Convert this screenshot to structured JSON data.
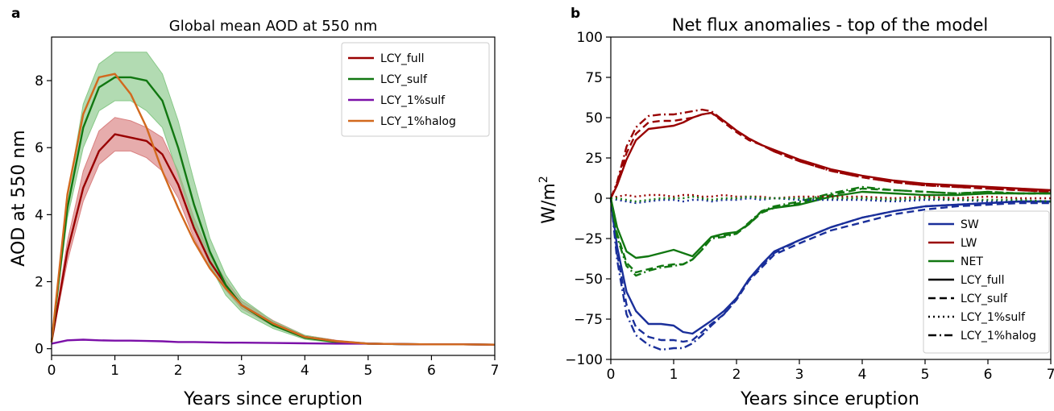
{
  "colors": {
    "full": "#990000",
    "sulf": "#117711",
    "onepct_sulf": "#7b10a8",
    "onepct_halog": "#d2691e",
    "full_band": "#d98080",
    "sulf_band": "#88c888",
    "SW": "#1a2f9a",
    "LW": "#990000",
    "NET": "#117711"
  },
  "chart_data": [
    {
      "type": "line",
      "panel": "a",
      "title": "Global mean AOD at 550 nm",
      "xlabel": "Years since eruption",
      "ylabel": "AOD at 550 nm",
      "xlim": [
        0,
        7
      ],
      "ylim": [
        -0.2,
        9.3
      ],
      "xticks": [
        0,
        1,
        2,
        3,
        4,
        5,
        6,
        7
      ],
      "yticks": [
        0,
        2,
        4,
        6,
        8
      ],
      "grid": false,
      "legend_position": "top-right",
      "x": [
        0,
        0.25,
        0.5,
        0.75,
        1.0,
        1.25,
        1.5,
        1.75,
        2.0,
        2.25,
        2.5,
        2.75,
        3.0,
        3.5,
        4.0,
        4.5,
        5.0,
        5.5,
        6.0,
        6.5,
        7.0
      ],
      "series": [
        {
          "name": "LCY_full",
          "key": "full",
          "values": [
            0.2,
            2.9,
            4.8,
            5.9,
            6.4,
            6.3,
            6.2,
            5.8,
            4.9,
            3.6,
            2.6,
            1.9,
            1.3,
            0.75,
            0.35,
            0.22,
            0.15,
            0.14,
            0.13,
            0.13,
            0.12
          ]
        },
        {
          "name": "LCY_sulf",
          "key": "sulf",
          "values": [
            0.2,
            4.2,
            6.6,
            7.8,
            8.1,
            8.1,
            8.0,
            7.4,
            6.0,
            4.3,
            2.9,
            1.9,
            1.3,
            0.7,
            0.33,
            0.2,
            0.15,
            0.14,
            0.13,
            0.13,
            0.12
          ]
        },
        {
          "name": "LCY_1%sulf",
          "key": "onepct_sulf",
          "values": [
            0.15,
            0.25,
            0.27,
            0.25,
            0.24,
            0.24,
            0.23,
            0.22,
            0.2,
            0.2,
            0.19,
            0.18,
            0.18,
            0.17,
            0.16,
            0.15,
            0.15,
            0.14,
            0.13,
            0.13,
            0.12
          ]
        },
        {
          "name": "LCY_1%halog",
          "key": "onepct_halog",
          "values": [
            0.2,
            4.6,
            7.0,
            8.1,
            8.2,
            7.6,
            6.6,
            5.3,
            4.2,
            3.2,
            2.4,
            1.8,
            1.3,
            0.75,
            0.35,
            0.22,
            0.15,
            0.14,
            0.13,
            0.13,
            0.12
          ]
        }
      ],
      "bands": [
        {
          "key": "full",
          "lower": [
            0.2,
            2.6,
            4.4,
            5.5,
            5.9,
            5.9,
            5.7,
            5.3,
            4.5,
            3.3,
            2.4,
            1.75,
            1.2,
            0.68,
            0.3,
            0.19,
            0.13,
            0.13,
            0.12,
            0.12,
            0.11
          ],
          "upper": [
            0.2,
            3.2,
            5.3,
            6.5,
            6.9,
            6.8,
            6.6,
            6.3,
            5.3,
            3.9,
            2.8,
            2.05,
            1.42,
            0.84,
            0.4,
            0.25,
            0.17,
            0.15,
            0.14,
            0.14,
            0.13
          ]
        },
        {
          "key": "sulf",
          "lower": [
            0.2,
            3.9,
            6.0,
            7.1,
            7.4,
            7.4,
            7.1,
            6.6,
            5.2,
            3.7,
            2.5,
            1.6,
            1.1,
            0.6,
            0.28,
            0.17,
            0.13,
            0.12,
            0.12,
            0.12,
            0.11
          ],
          "upper": [
            0.2,
            4.5,
            7.3,
            8.5,
            8.85,
            8.85,
            8.85,
            8.2,
            6.8,
            5.0,
            3.3,
            2.2,
            1.5,
            0.82,
            0.4,
            0.24,
            0.17,
            0.15,
            0.14,
            0.14,
            0.13
          ]
        }
      ]
    },
    {
      "type": "line",
      "panel": "b",
      "title": "Net flux anomalies - top of the model",
      "xlabel": "Years since eruption",
      "ylabel": "W/m",
      "ylabel_sup": "2",
      "xlim": [
        0,
        7
      ],
      "ylim": [
        -100,
        100
      ],
      "xticks": [
        0,
        1,
        2,
        3,
        4,
        5,
        6,
        7
      ],
      "yticks": [
        -100,
        -75,
        -50,
        -25,
        0,
        25,
        50,
        75,
        100
      ],
      "grid": false,
      "legend_position": "lower-right",
      "legend": {
        "colors": [
          {
            "name": "SW",
            "key": "SW"
          },
          {
            "name": "LW",
            "key": "LW"
          },
          {
            "name": "NET",
            "key": "NET"
          }
        ],
        "styles": [
          {
            "name": "LCY_full",
            "dash": "solid"
          },
          {
            "name": "LCY_sulf",
            "dash": "dashed"
          },
          {
            "name": "LCY_1%sulf",
            "dash": "dotted"
          },
          {
            "name": "LCY_1%halog",
            "dash": "dashdot"
          }
        ]
      },
      "x": [
        0,
        0.1,
        0.25,
        0.4,
        0.6,
        0.8,
        1.0,
        1.15,
        1.3,
        1.45,
        1.6,
        1.8,
        2.0,
        2.2,
        2.4,
        2.6,
        3.0,
        3.5,
        4.0,
        4.5,
        5.0,
        5.5,
        6.0,
        6.5,
        7.0
      ],
      "series": [
        {
          "name": "SW",
          "key": "SW",
          "dash": "solid",
          "values": [
            0,
            -30,
            -58,
            -70,
            -78,
            -78,
            -79,
            -83,
            -84,
            -80,
            -76,
            -70,
            -62,
            -50,
            -41,
            -33,
            -26,
            -18,
            -12,
            -8,
            -5,
            -4,
            -3,
            -2,
            -2
          ]
        },
        {
          "name": "SW",
          "key": "SW",
          "dash": "dashed",
          "values": [
            0,
            -34,
            -66,
            -80,
            -86,
            -88,
            -88,
            -89,
            -88,
            -83,
            -78,
            -72,
            -63,
            -51,
            -43,
            -35,
            -28,
            -20,
            -15,
            -10,
            -7,
            -5,
            -4,
            -3,
            -3
          ]
        },
        {
          "name": "SW",
          "key": "SW",
          "dash": "dashdot",
          "values": [
            0,
            -38,
            -72,
            -85,
            -91,
            -94,
            -93,
            -93,
            -90,
            -85,
            -79,
            -72,
            -62,
            -50,
            -42,
            -34,
            -26,
            -18,
            -12,
            -8,
            -5,
            -4,
            -3,
            -2,
            -2
          ]
        },
        {
          "name": "LW",
          "key": "LW",
          "dash": "solid",
          "values": [
            0,
            8,
            24,
            36,
            43,
            44,
            45,
            47,
            50,
            52,
            53,
            48,
            42,
            37,
            33,
            30,
            24,
            18,
            14,
            11,
            9,
            8,
            7,
            6,
            5
          ]
        },
        {
          "name": "LW",
          "key": "LW",
          "dash": "dashed",
          "values": [
            0,
            9,
            28,
            40,
            47,
            48,
            48,
            49,
            50,
            52,
            53,
            47,
            41,
            36,
            33,
            29,
            23,
            17,
            13,
            10,
            8,
            7,
            6,
            5,
            4
          ]
        },
        {
          "name": "LW",
          "key": "LW",
          "dash": "dashdot",
          "values": [
            0,
            10,
            32,
            44,
            51,
            52,
            52,
            53,
            54,
            55,
            54,
            48,
            42,
            37,
            33,
            29,
            23,
            17,
            13,
            10,
            8,
            7,
            6,
            5,
            4
          ]
        },
        {
          "name": "NET",
          "key": "NET",
          "dash": "solid",
          "values": [
            0,
            -18,
            -33,
            -37,
            -36,
            -34,
            -32,
            -34,
            -36,
            -30,
            -24,
            -22,
            -21,
            -16,
            -8,
            -6,
            -4,
            1,
            4,
            3,
            2,
            2,
            3,
            3,
            3
          ]
        },
        {
          "name": "NET",
          "key": "NET",
          "dash": "dashed",
          "values": [
            0,
            -22,
            -40,
            -46,
            -44,
            -42,
            -41,
            -41,
            -38,
            -32,
            -24,
            -23,
            -22,
            -16,
            -9,
            -6,
            -3,
            2,
            6,
            5,
            4,
            3,
            4,
            3,
            3
          ]
        },
        {
          "name": "NET",
          "key": "NET",
          "dash": "dashdot",
          "values": [
            0,
            -24,
            -42,
            -48,
            -45,
            -43,
            -42,
            -41,
            -38,
            -32,
            -25,
            -24,
            -22,
            -15,
            -8,
            -5,
            -2,
            3,
            7,
            5,
            4,
            3,
            4,
            3,
            3
          ]
        },
        {
          "name": "SW",
          "key": "SW",
          "dash": "dotted",
          "values": [
            0,
            -1,
            -2,
            -3,
            -2,
            -1,
            -1,
            -2,
            -1,
            -1,
            -2,
            -1,
            -1,
            0,
            -1,
            0,
            -1,
            -1,
            -1,
            -2,
            -1,
            -1,
            -2,
            -2,
            -2
          ]
        },
        {
          "name": "LW",
          "key": "LW",
          "dash": "dotted",
          "values": [
            0,
            1,
            2,
            1,
            2,
            2,
            1,
            2,
            2,
            1,
            1,
            2,
            1,
            1,
            1,
            0,
            1,
            1,
            1,
            0,
            1,
            0,
            1,
            0,
            0
          ]
        },
        {
          "name": "NET",
          "key": "NET",
          "dash": "dotted",
          "values": [
            0,
            0,
            -1,
            -2,
            -1,
            0,
            0,
            0,
            1,
            0,
            -1,
            0,
            0,
            1,
            0,
            0,
            0,
            0,
            0,
            -1,
            0,
            -1,
            -1,
            -1,
            -2
          ]
        }
      ]
    }
  ]
}
